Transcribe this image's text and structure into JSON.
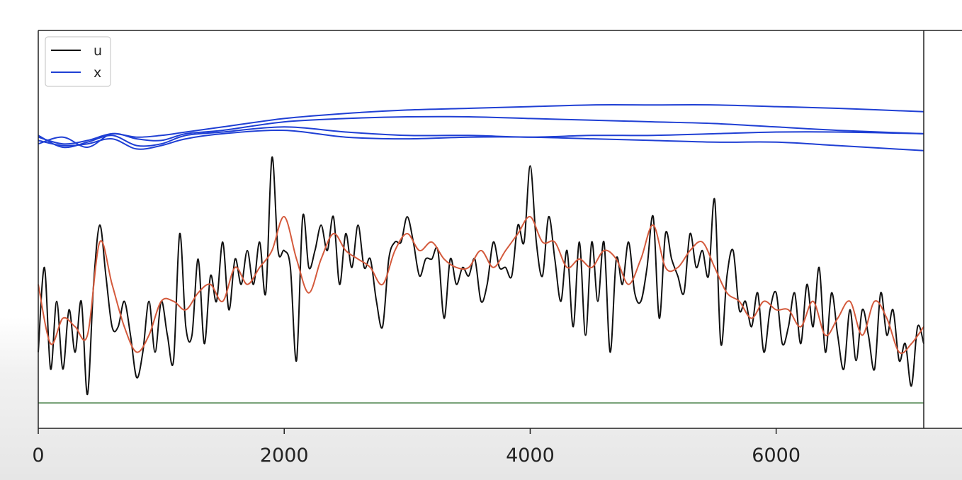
{
  "chart_data": {
    "type": "line",
    "title": "",
    "xlabel": "",
    "ylabel": "",
    "xlim": [
      0,
      7200
    ],
    "ylim": [
      -1.3,
      1.05
    ],
    "x_ticks": [
      0,
      2000,
      4000,
      6000
    ],
    "y_ticks_shown": false,
    "grid": false,
    "legend": {
      "placement": "top-left",
      "entries": [
        {
          "label": "u",
          "color": "#111111"
        },
        {
          "label": "x",
          "color": "#1f3fd4"
        }
      ]
    },
    "colors": {
      "u": "#111111",
      "x": "#1f3fd4",
      "smooth": "#d45a3c",
      "baseline": "#3f7a3f"
    },
    "series": [
      {
        "name": "u",
        "role": "u",
        "color": "#111111",
        "x": [
          0,
          50,
          100,
          150,
          200,
          250,
          300,
          350,
          400,
          450,
          500,
          550,
          600,
          650,
          700,
          750,
          800,
          850,
          900,
          950,
          1000,
          1050,
          1100,
          1150,
          1200,
          1250,
          1300,
          1350,
          1400,
          1450,
          1500,
          1550,
          1600,
          1650,
          1700,
          1750,
          1800,
          1850,
          1900,
          1950,
          2000,
          2050,
          2100,
          2150,
          2200,
          2250,
          2300,
          2350,
          2400,
          2450,
          2500,
          2550,
          2600,
          2650,
          2700,
          2750,
          2800,
          2850,
          2900,
          2950,
          3000,
          3050,
          3100,
          3150,
          3200,
          3250,
          3300,
          3350,
          3400,
          3450,
          3500,
          3550,
          3600,
          3650,
          3700,
          3750,
          3800,
          3850,
          3900,
          3950,
          4000,
          4050,
          4100,
          4150,
          4200,
          4250,
          4300,
          4350,
          4400,
          4450,
          4500,
          4550,
          4600,
          4650,
          4700,
          4750,
          4800,
          4850,
          4900,
          4950,
          5000,
          5050,
          5100,
          5150,
          5200,
          5250,
          5300,
          5350,
          5400,
          5450,
          5500,
          5550,
          5600,
          5650,
          5700,
          5750,
          5800,
          5850,
          5900,
          5950,
          6000,
          6050,
          6100,
          6150,
          6200,
          6250,
          6300,
          6350,
          6400,
          6450,
          6500,
          6550,
          6600,
          6650,
          6700,
          6750,
          6800,
          6850,
          6900,
          6950,
          7000,
          7050,
          7100,
          7150,
          7200
        ],
        "y": [
          -0.85,
          -0.35,
          -0.95,
          -0.55,
          -0.95,
          -0.6,
          -0.85,
          -0.55,
          -1.1,
          -0.45,
          -0.1,
          -0.4,
          -0.7,
          -0.7,
          -0.55,
          -0.75,
          -1.0,
          -0.85,
          -0.55,
          -0.85,
          -0.55,
          -0.75,
          -0.9,
          -0.15,
          -0.7,
          -0.75,
          -0.3,
          -0.8,
          -0.4,
          -0.55,
          -0.2,
          -0.6,
          -0.3,
          -0.45,
          -0.25,
          -0.45,
          -0.2,
          -0.5,
          0.3,
          -0.25,
          -0.25,
          -0.35,
          -0.9,
          -0.05,
          -0.35,
          -0.25,
          -0.1,
          -0.25,
          -0.05,
          -0.45,
          -0.15,
          -0.35,
          -0.1,
          -0.35,
          -0.3,
          -0.55,
          -0.7,
          -0.3,
          -0.2,
          -0.2,
          -0.05,
          -0.2,
          -0.4,
          -0.3,
          -0.3,
          -0.25,
          -0.65,
          -0.3,
          -0.45,
          -0.35,
          -0.4,
          -0.3,
          -0.55,
          -0.45,
          -0.2,
          -0.35,
          -0.35,
          -0.4,
          -0.1,
          -0.2,
          0.25,
          -0.2,
          -0.4,
          -0.05,
          -0.3,
          -0.55,
          -0.25,
          -0.7,
          -0.2,
          -0.75,
          -0.2,
          -0.55,
          -0.2,
          -0.85,
          -0.3,
          -0.45,
          -0.2,
          -0.5,
          -0.55,
          -0.35,
          -0.05,
          -0.65,
          -0.15,
          -0.3,
          -0.4,
          -0.5,
          -0.15,
          -0.35,
          -0.25,
          -0.4,
          0.05,
          -0.8,
          -0.4,
          -0.25,
          -0.6,
          -0.55,
          -0.7,
          -0.5,
          -0.85,
          -0.6,
          -0.5,
          -0.8,
          -0.7,
          -0.5,
          -0.8,
          -0.45,
          -0.7,
          -0.35,
          -0.85,
          -0.5,
          -0.75,
          -0.95,
          -0.6,
          -0.9,
          -0.6,
          -0.75,
          -0.95,
          -0.5,
          -0.75,
          -0.6,
          -0.9,
          -0.8,
          -1.05,
          -0.7,
          -0.8
        ]
      },
      {
        "name": "",
        "role": "smooth",
        "color": "#d45a3c",
        "x": [
          0,
          100,
          200,
          300,
          400,
          500,
          600,
          700,
          800,
          900,
          1000,
          1100,
          1200,
          1300,
          1400,
          1500,
          1600,
          1700,
          1800,
          1900,
          2000,
          2100,
          2200,
          2300,
          2400,
          2500,
          2600,
          2700,
          2800,
          2900,
          3000,
          3100,
          3200,
          3300,
          3400,
          3500,
          3600,
          3700,
          3800,
          3900,
          4000,
          4100,
          4200,
          4300,
          4400,
          4500,
          4600,
          4700,
          4800,
          4900,
          5000,
          5100,
          5200,
          5300,
          5400,
          5500,
          5600,
          5700,
          5800,
          5900,
          6000,
          6100,
          6200,
          6300,
          6400,
          6500,
          6600,
          6700,
          6800,
          6900,
          7000,
          7100,
          7200
        ],
        "y": [
          -0.45,
          -0.8,
          -0.65,
          -0.7,
          -0.75,
          -0.2,
          -0.45,
          -0.7,
          -0.85,
          -0.75,
          -0.55,
          -0.55,
          -0.6,
          -0.5,
          -0.45,
          -0.55,
          -0.35,
          -0.45,
          -0.35,
          -0.25,
          -0.05,
          -0.3,
          -0.5,
          -0.3,
          -0.15,
          -0.25,
          -0.3,
          -0.35,
          -0.45,
          -0.25,
          -0.15,
          -0.25,
          -0.2,
          -0.3,
          -0.35,
          -0.35,
          -0.25,
          -0.35,
          -0.25,
          -0.15,
          -0.05,
          -0.2,
          -0.2,
          -0.35,
          -0.3,
          -0.35,
          -0.25,
          -0.3,
          -0.45,
          -0.3,
          -0.1,
          -0.35,
          -0.35,
          -0.25,
          -0.2,
          -0.35,
          -0.5,
          -0.55,
          -0.65,
          -0.55,
          -0.6,
          -0.6,
          -0.7,
          -0.55,
          -0.75,
          -0.65,
          -0.55,
          -0.75,
          -0.55,
          -0.65,
          -0.85,
          -0.8,
          -0.7
        ]
      },
      {
        "name": "x",
        "role": "x",
        "color": "#1f3fd4",
        "x": [
          0,
          200,
          400,
          600,
          800,
          1000,
          1200,
          1500,
          2000,
          2500,
          3000,
          3500,
          4000,
          4500,
          5000,
          5500,
          6000,
          6500,
          7200
        ],
        "y": [
          0.42,
          0.38,
          0.4,
          0.44,
          0.42,
          0.43,
          0.45,
          0.48,
          0.53,
          0.56,
          0.58,
          0.59,
          0.6,
          0.61,
          0.61,
          0.61,
          0.6,
          0.59,
          0.57
        ]
      },
      {
        "name": "",
        "role": "x",
        "color": "#1f3fd4",
        "x": [
          0,
          200,
          400,
          600,
          800,
          1000,
          1200,
          1500,
          2000,
          2500,
          3000,
          3500,
          4000,
          4500,
          5000,
          5500,
          6000,
          6500,
          7200
        ],
        "y": [
          0.38,
          0.42,
          0.36,
          0.44,
          0.41,
          0.4,
          0.44,
          0.46,
          0.51,
          0.53,
          0.54,
          0.54,
          0.53,
          0.52,
          0.51,
          0.5,
          0.48,
          0.46,
          0.44
        ]
      },
      {
        "name": "",
        "role": "x",
        "color": "#1f3fd4",
        "x": [
          0,
          200,
          400,
          600,
          800,
          1000,
          1200,
          1500,
          2000,
          2500,
          3000,
          3500,
          4000,
          4500,
          5000,
          5500,
          6000,
          6500,
          7200
        ],
        "y": [
          0.43,
          0.36,
          0.39,
          0.43,
          0.37,
          0.38,
          0.43,
          0.45,
          0.48,
          0.45,
          0.43,
          0.43,
          0.42,
          0.43,
          0.43,
          0.44,
          0.45,
          0.45,
          0.44
        ]
      },
      {
        "name": "",
        "role": "x",
        "color": "#1f3fd4",
        "x": [
          0,
          200,
          400,
          600,
          800,
          1000,
          1200,
          1500,
          2000,
          2500,
          3000,
          3500,
          4000,
          4500,
          5000,
          5500,
          6000,
          6500,
          7200
        ],
        "y": [
          0.4,
          0.37,
          0.38,
          0.41,
          0.35,
          0.37,
          0.41,
          0.44,
          0.46,
          0.42,
          0.41,
          0.42,
          0.42,
          0.41,
          0.4,
          0.39,
          0.39,
          0.37,
          0.34
        ]
      },
      {
        "name": "",
        "role": "baseline",
        "color": "#3f7a3f",
        "x": [
          0,
          7200
        ],
        "y": [
          -1.15,
          -1.15
        ]
      }
    ]
  }
}
